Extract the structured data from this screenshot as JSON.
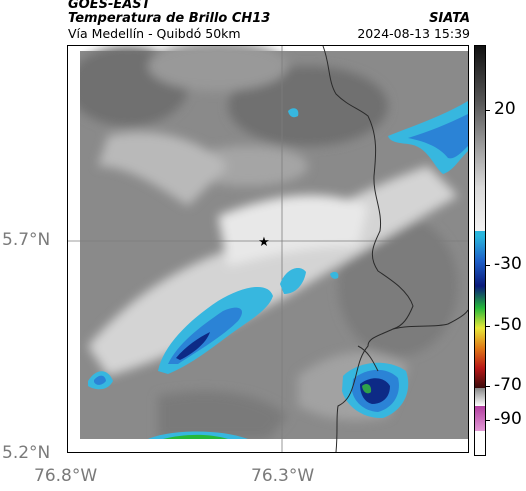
{
  "header": {
    "line1": "GOES-EAST",
    "line2": "Temperatura de Brillo CH13",
    "line3": "Vía Medellín - Quibdó 50km",
    "brand": "SIATA",
    "datetime": "2024-08-13 15:39"
  },
  "axes": {
    "y_ticks": [
      "5.7°N",
      "5.2°N"
    ],
    "x_ticks": [
      "76.8°W",
      "76.3°W"
    ]
  },
  "colorbar": {
    "labels": [
      "20",
      "-30",
      "-50",
      "-70",
      "-90"
    ],
    "colors": {
      "top": "#111111",
      "gray_mid": "#9a9a9a",
      "gray_light": "#f2f2f2",
      "cyan": "#2ab6dd",
      "blue": "#1e5fc8",
      "navy": "#0a1a7a",
      "green": "#25b83a",
      "yellow": "#e8e83a",
      "orange": "#e07a18",
      "red": "#b81818",
      "dark": "#3a0c0c",
      "magenta": "#b23fa0",
      "pink": "#e39ad6"
    }
  },
  "map": {
    "marker": "star-icon",
    "colors": {
      "cloud_blue": "#2b83d6",
      "cloud_cyan": "#37b7df",
      "cloud_navy": "#0d2a86",
      "cloud_green": "#2fa24a",
      "gray_dark": "#6b6b6b",
      "gray_mid": "#8d8d8d",
      "gray_light": "#c9c9c9",
      "gray_white": "#eeeeee",
      "border": "#2a2a2a"
    }
  }
}
